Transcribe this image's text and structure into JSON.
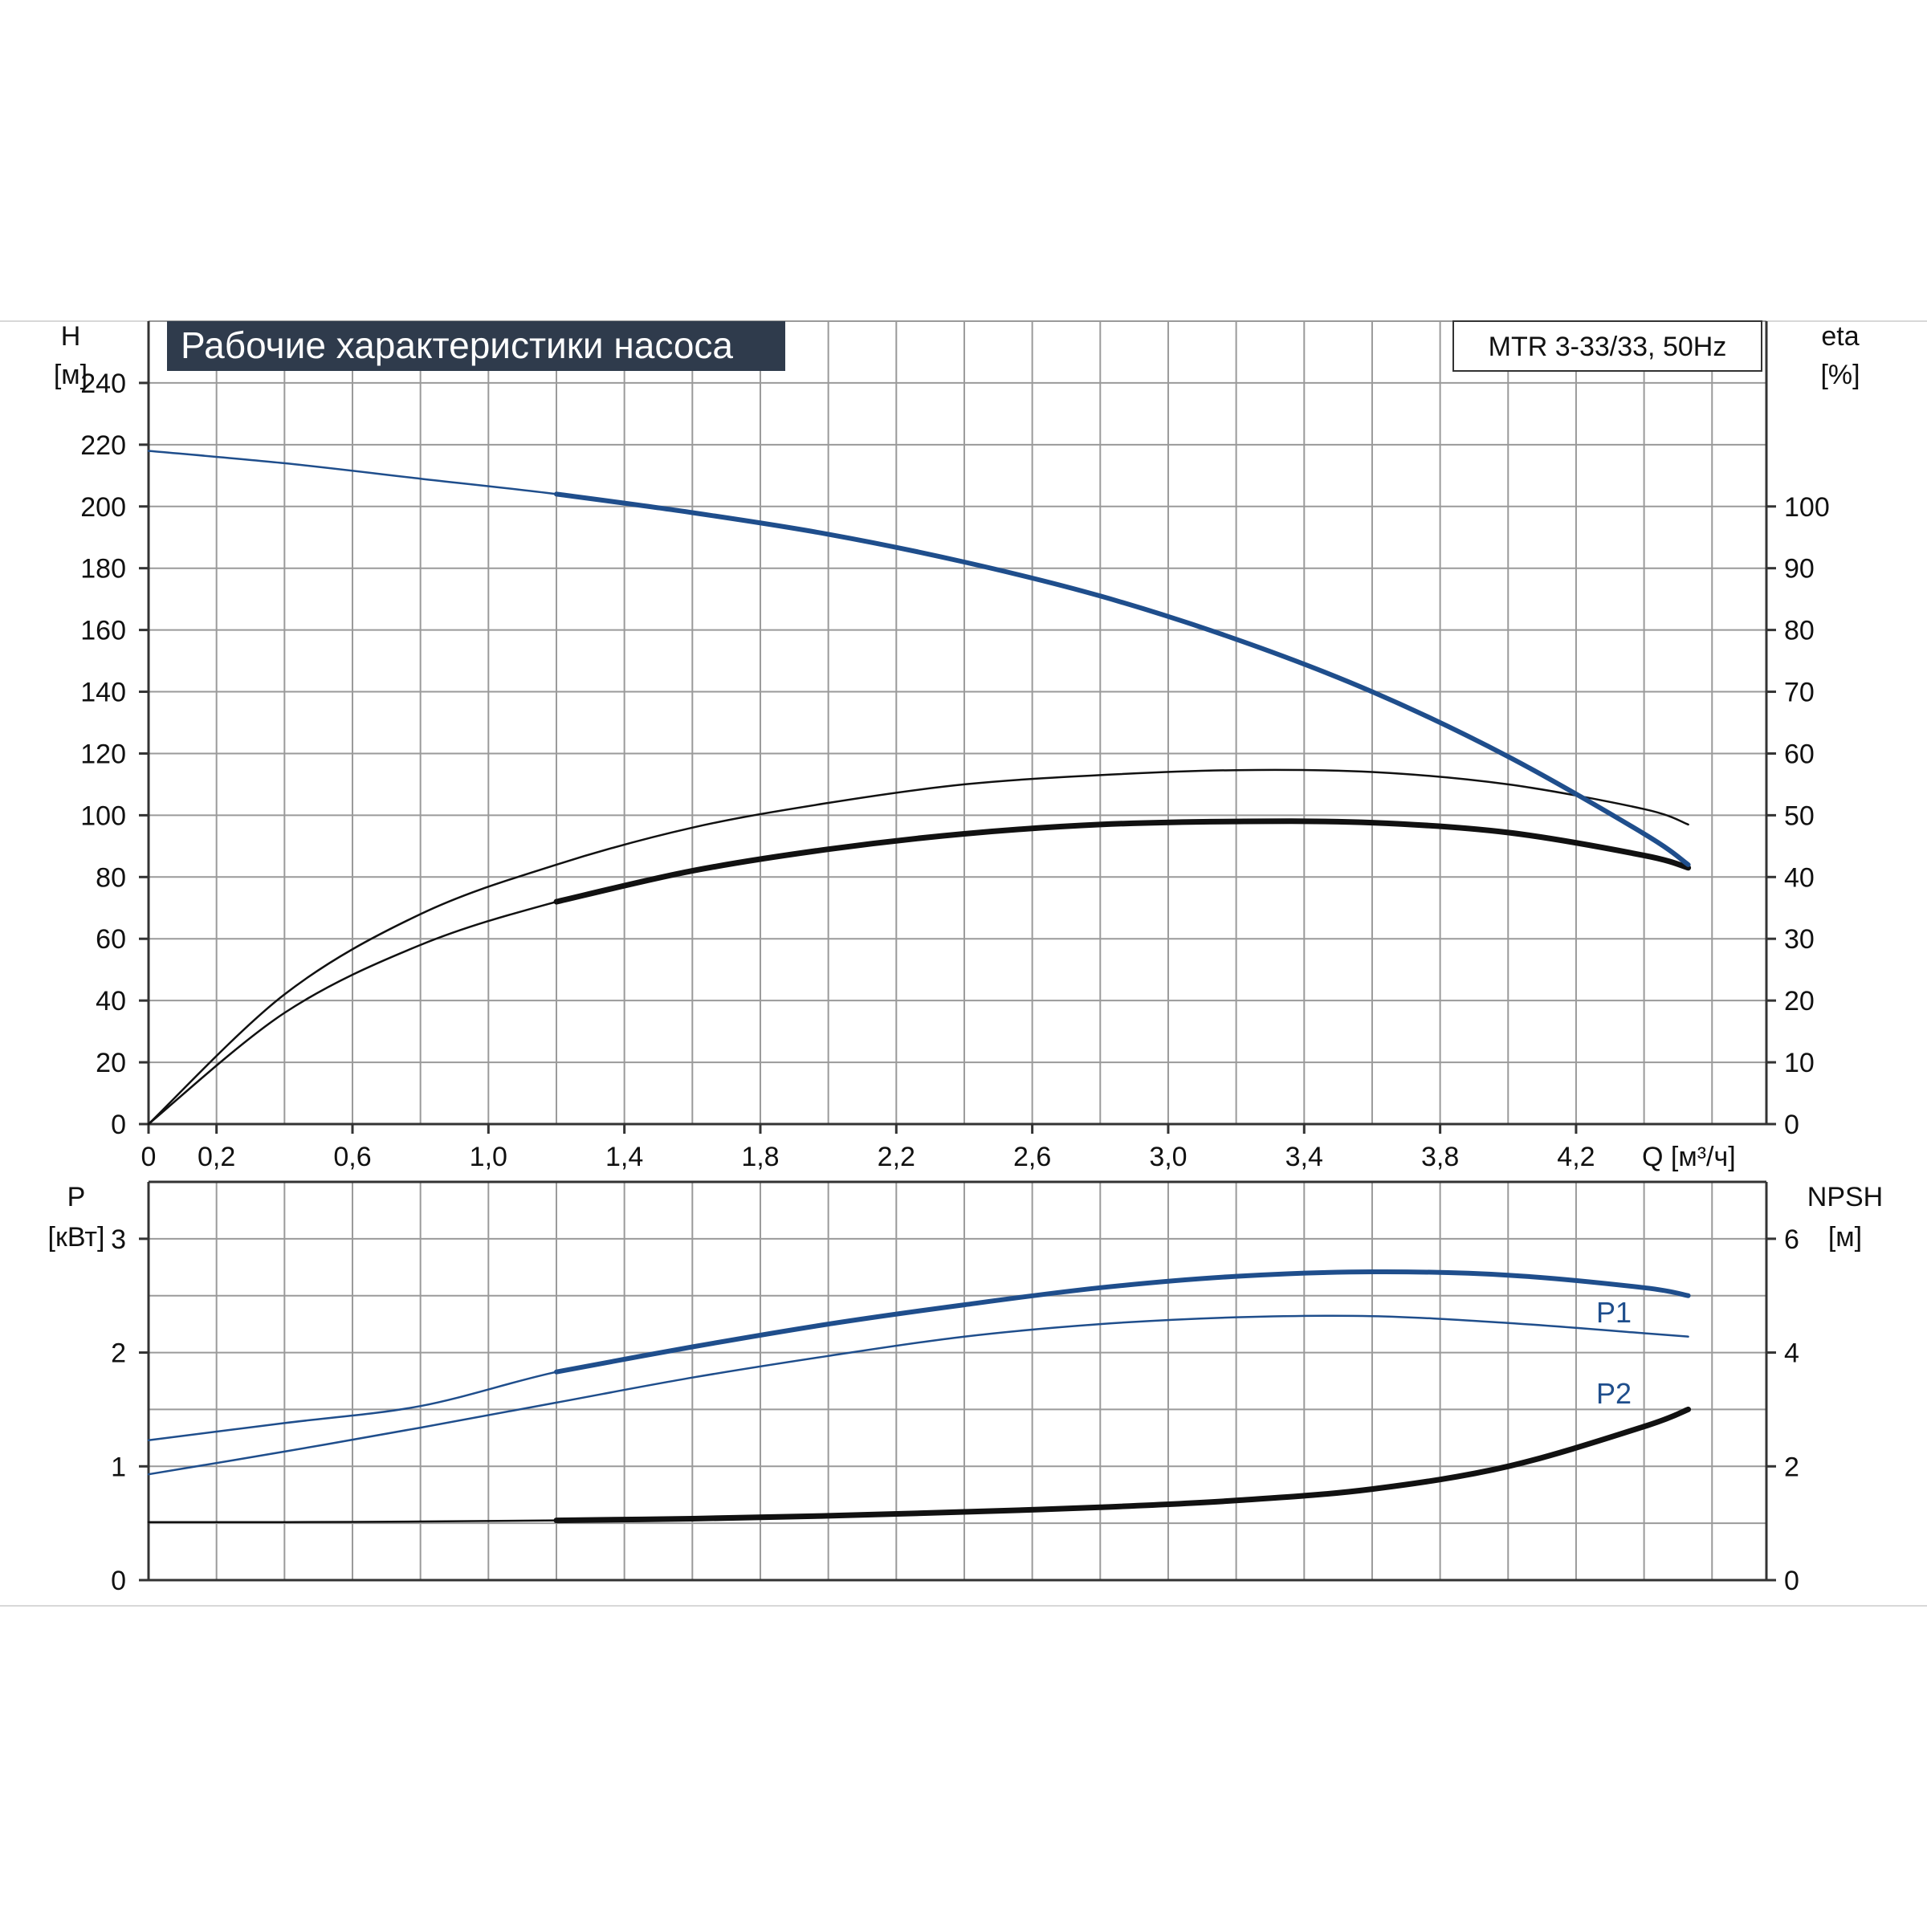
{
  "title": "Рабочие характеристики насоса",
  "model": "MTR 3-33/33, 50Hz",
  "colors": {
    "blue": "#1f4e8c",
    "black": "#111111",
    "title_bg": "#2f3b4c",
    "grid": "#9a9a9a"
  },
  "top_panel": {
    "y_left_label": {
      "name": "H",
      "unit": "[м]"
    },
    "y_right_label": {
      "name": "eta",
      "unit": "[%]"
    },
    "x_label": "Q [м³/ч]",
    "x_ticks": [
      "0",
      "0,2",
      "0,6",
      "1,0",
      "1,4",
      "1,8",
      "2,2",
      "2,6",
      "3,0",
      "3,4",
      "3,8",
      "4,2"
    ],
    "y_left_ticks": [
      "0",
      "20",
      "40",
      "60",
      "80",
      "100",
      "120",
      "140",
      "160",
      "180",
      "200",
      "220",
      "240"
    ],
    "y_right_ticks": [
      "0",
      "10",
      "20",
      "30",
      "40",
      "50",
      "60",
      "70",
      "80",
      "90",
      "100"
    ]
  },
  "bottom_panel": {
    "y_left_label": {
      "name": "P",
      "unit": "[кВт]"
    },
    "y_right_label": {
      "name": "NPSH",
      "unit": "[м]"
    },
    "y_left_ticks": [
      "0",
      "1",
      "2",
      "3"
    ],
    "y_right_ticks": [
      "0",
      "2",
      "4",
      "6"
    ],
    "curve_labels": {
      "p1": "P1",
      "p2": "P2"
    }
  },
  "chart_data": [
    {
      "type": "line",
      "title": "Рабочие характеристики насоса",
      "xlabel": "Q [м³/ч]",
      "ylabel": "H [м]",
      "ylabel_right": "eta [%]",
      "xlim": [
        0,
        5
      ],
      "ylim": [
        0,
        260
      ],
      "ylim_right": [
        0,
        130
      ],
      "grid": true,
      "series": [
        {
          "axis": "left",
          "x": [
            0,
            0.4,
            0.8,
            1.2,
            1.6,
            2.0,
            2.4,
            2.8,
            3.2,
            3.6,
            4.0,
            4.4,
            4.53
          ],
          "values": [
            218,
            214,
            209,
            204,
            198,
            191,
            182,
            171,
            157,
            140,
            119,
            94,
            84
          ]
        },
        {
          "axis": "right",
          "x": [
            0,
            0.4,
            0.8,
            1.2,
            1.6,
            2.0,
            2.4,
            2.8,
            3.2,
            3.6,
            4.0,
            4.4,
            4.53
          ],
          "values": [
            0,
            21,
            34,
            42,
            48,
            52,
            55,
            56.5,
            57.3,
            57,
            55,
            51,
            48.5
          ]
        },
        {
          "axis": "right",
          "x": [
            0,
            0.4,
            0.8,
            1.2,
            1.6,
            2.0,
            2.4,
            2.8,
            3.2,
            3.6,
            4.0,
            4.4,
            4.53
          ],
          "values": [
            0,
            18,
            29,
            36,
            41,
            44.5,
            47,
            48.5,
            49,
            48.8,
            47.2,
            43.5,
            41.5
          ]
        }
      ]
    },
    {
      "type": "line",
      "xlabel": "Q [м³/ч]",
      "ylabel": "P [кВт]",
      "ylabel_right": "NPSH [м]",
      "xlim": [
        0,
        5
      ],
      "ylim": [
        0,
        3.5
      ],
      "ylim_right": [
        0,
        7
      ],
      "grid": true,
      "series": [
        {
          "name": "P1",
          "axis": "left",
          "x": [
            0,
            0.4,
            0.8,
            1.2,
            1.6,
            2.0,
            2.4,
            2.8,
            3.2,
            3.6,
            4.0,
            4.4,
            4.53
          ],
          "values": [
            1.23,
            1.38,
            1.53,
            1.83,
            2.05,
            2.25,
            2.42,
            2.57,
            2.67,
            2.71,
            2.68,
            2.57,
            2.5
          ]
        },
        {
          "name": "P2",
          "axis": "left",
          "x": [
            0,
            0.4,
            0.8,
            1.2,
            1.6,
            2.0,
            2.4,
            2.8,
            3.2,
            3.6,
            4.0,
            4.4,
            4.53
          ],
          "values": [
            0.93,
            1.13,
            1.34,
            1.56,
            1.78,
            1.97,
            2.14,
            2.25,
            2.31,
            2.32,
            2.26,
            2.17,
            2.14
          ]
        },
        {
          "axis": "right",
          "x": [
            0,
            0.4,
            0.8,
            1.2,
            1.6,
            2.0,
            2.4,
            2.8,
            3.2,
            3.6,
            4.0,
            4.4,
            4.53
          ],
          "values": [
            1.02,
            1.02,
            1.03,
            1.05,
            1.08,
            1.13,
            1.2,
            1.28,
            1.4,
            1.6,
            2.0,
            2.7,
            3.0
          ]
        }
      ]
    }
  ]
}
